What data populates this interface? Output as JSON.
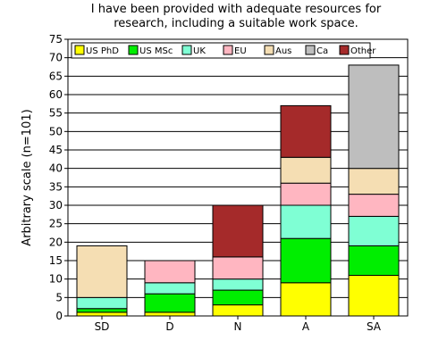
{
  "chart_data": {
    "type": "bar",
    "stacked": true,
    "title": [
      "I have been provided with adequate resources for",
      "research, including a suitable work space."
    ],
    "ylabel": "Arbitrary scale (n=101)",
    "xlabel": "",
    "categories": [
      "SD",
      "D",
      "N",
      "A",
      "SA"
    ],
    "ylim": [
      0,
      75
    ],
    "yticks": [
      0,
      5,
      10,
      15,
      20,
      25,
      30,
      35,
      40,
      45,
      50,
      55,
      60,
      65,
      70,
      75
    ],
    "grid": true,
    "legend_position": "top",
    "series": [
      {
        "name": "US PhD",
        "color": "#ffff00",
        "values": [
          1,
          1,
          3,
          9,
          11
        ]
      },
      {
        "name": "US MSc",
        "color": "#00ee00",
        "values": [
          1,
          5,
          4,
          12,
          8
        ]
      },
      {
        "name": "UK",
        "color": "#7fffd4",
        "values": [
          3,
          3,
          3,
          9,
          8
        ]
      },
      {
        "name": "EU",
        "color": "#ffb6c1",
        "values": [
          0,
          6,
          6,
          6,
          6
        ]
      },
      {
        "name": "Aus",
        "color": "#f5deb3",
        "values": [
          14,
          0,
          0,
          7,
          7
        ]
      },
      {
        "name": "Ca",
        "color": "#bebebe",
        "values": [
          0,
          0,
          0,
          0,
          28
        ]
      },
      {
        "name": "Other",
        "color": "#a52a2a",
        "values": [
          0,
          0,
          14,
          14,
          0
        ]
      }
    ]
  }
}
